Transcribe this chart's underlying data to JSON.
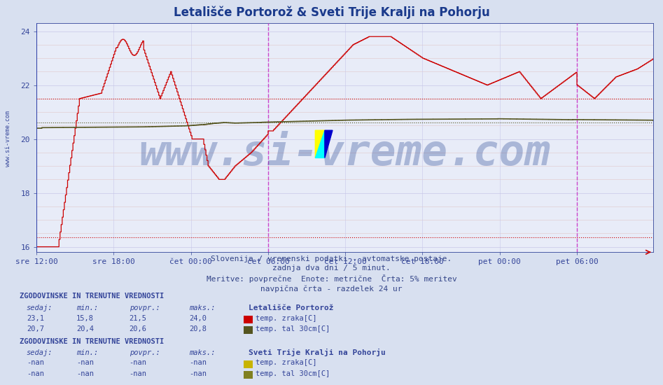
{
  "title": "Letališče Portorož & Sveti Trije Kralji na Pohorju",
  "title_color": "#1a3a8c",
  "title_fontsize": 12,
  "bg_color": "#d8e0f0",
  "plot_bg_color": "#e8ecf8",
  "grid_color": "#c8d0e8",
  "xlim": [
    0,
    575
  ],
  "ylim": [
    15.8,
    24.3
  ],
  "yticks": [
    16,
    18,
    20,
    22,
    24
  ],
  "xtick_labels": [
    "sre 12:00",
    "sre 18:00",
    "čet 00:00",
    "čet 06:00",
    "čet 12:00",
    "čet 18:00",
    "pet 00:00",
    "pet 06:00"
  ],
  "xtick_positions": [
    0,
    72,
    144,
    216,
    288,
    360,
    432,
    504
  ],
  "vline_positions": [
    216,
    504
  ],
  "vline_color": "#cc44cc",
  "hline_avg1": 21.5,
  "hline_avg2": 20.6,
  "hline_min1": 16.35,
  "line1_color": "#cc0000",
  "line2_color": "#555520",
  "axis_color": "#334499",
  "tick_color": "#334499",
  "tick_fontsize": 8,
  "watermark_text": "www.si-vreme.com",
  "watermark_color": "#1a3a8c",
  "watermark_alpha": 0.3,
  "watermark_fontsize": 44,
  "subtitle_color": "#334488",
  "subtitle_fontsize": 8,
  "legend_title1": "Letališče Portorož",
  "legend_title2": "Sveti Trije Kralji na Pohorju",
  "legend_items1": [
    "temp. zraka[C]",
    "temp. tal 30cm[C]"
  ],
  "legend_items2": [
    "temp. zraka[C]",
    "temp. tal 30cm[C]"
  ],
  "legend_colors1": [
    "#cc0000",
    "#555520"
  ],
  "legend_colors2": [
    "#c8b400",
    "#808020"
  ],
  "stats_header": "ZGODOVINSKE IN TRENUTNE VREDNOSTI",
  "stats1": [
    [
      "23,1",
      "15,8",
      "21,5",
      "24,0"
    ],
    [
      "20,7",
      "20,4",
      "20,6",
      "20,8"
    ]
  ],
  "stats2": [
    [
      "-nan",
      "-nan",
      "-nan",
      "-nan"
    ],
    [
      "-nan",
      "-nan",
      "-nan",
      "-nan"
    ]
  ],
  "sivreme_label": "www.si-vreme.com"
}
